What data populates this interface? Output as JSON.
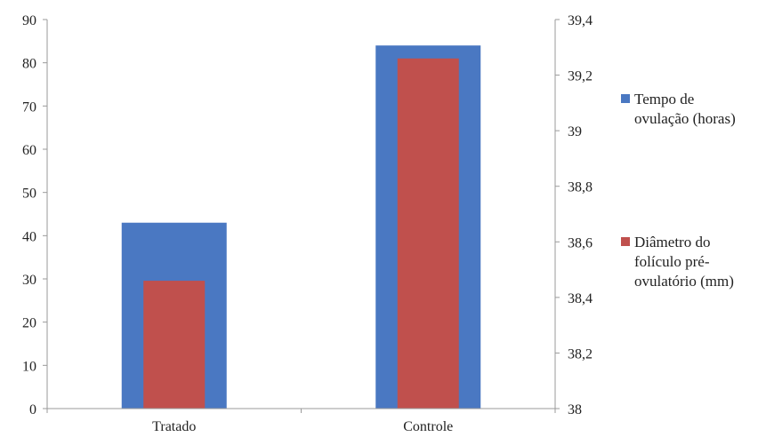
{
  "colors": {
    "series1": "#4a78c2",
    "series2": "#c0504d",
    "axis": "#9a9a9a",
    "text": "#222222"
  },
  "chart_data": {
    "type": "bar",
    "categories": [
      "Tratado",
      "Controle"
    ],
    "series": [
      {
        "name": "Tempo de\novulação (horas)",
        "values": [
          43,
          84
        ],
        "axis": "left"
      },
      {
        "name": "Diâmetro do\nfolículo pré-\novulatório (mm)",
        "values": [
          38.46,
          39.26
        ],
        "axis": "right"
      }
    ],
    "y_left": {
      "min": 0,
      "max": 90,
      "ticks": [
        "0",
        "10",
        "20",
        "30",
        "40",
        "50",
        "60",
        "70",
        "80",
        "90"
      ]
    },
    "y_right": {
      "min": 38,
      "max": 39.4,
      "ticks": [
        "38",
        "38,2",
        "38,4",
        "38,6",
        "38,8",
        "39",
        "39,2",
        "39,4"
      ]
    },
    "title": "",
    "xlabel": "",
    "ylabel": "",
    "grid": false,
    "legend_position": "right"
  }
}
